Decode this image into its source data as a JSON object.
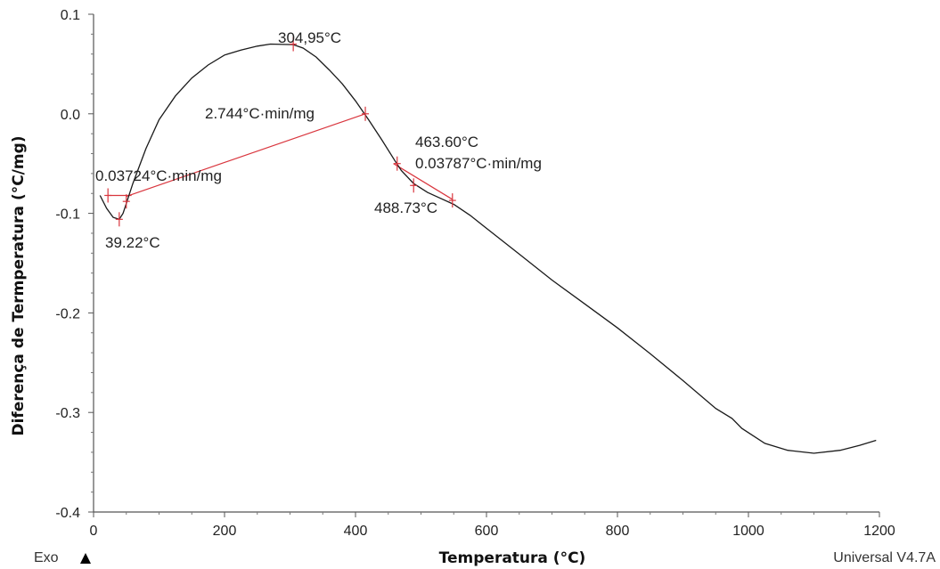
{
  "chart_data": {
    "type": "line",
    "xlabel": "Temperatura (°C)",
    "ylabel": "Diferença de Termperatura (°C/mg)",
    "xlim": [
      0,
      1200
    ],
    "ylim": [
      -0.4,
      0.1
    ],
    "x_ticks": [
      "0",
      "200",
      "400",
      "600",
      "800",
      "1000",
      "1200"
    ],
    "y_ticks": [
      "0.1",
      "0.0",
      "-0.1",
      "-0.2",
      "-0.3",
      "-0.4"
    ],
    "grid": false,
    "series": [
      {
        "color": "#1a1a1a",
        "points": [
          [
            10,
            -0.082
          ],
          [
            20,
            -0.095
          ],
          [
            30,
            -0.104
          ],
          [
            39.22,
            -0.106
          ],
          [
            45,
            -0.1
          ],
          [
            50,
            -0.09
          ],
          [
            60,
            -0.07
          ],
          [
            80,
            -0.035
          ],
          [
            100,
            -0.006
          ],
          [
            125,
            0.018
          ],
          [
            150,
            0.036
          ],
          [
            175,
            0.049
          ],
          [
            200,
            0.059
          ],
          [
            225,
            0.064
          ],
          [
            250,
            0.068
          ],
          [
            270,
            0.07
          ],
          [
            304.95,
            0.0695
          ],
          [
            320,
            0.066
          ],
          [
            340,
            0.057
          ],
          [
            360,
            0.044
          ],
          [
            380,
            0.03
          ],
          [
            400,
            0.013
          ],
          [
            420,
            -0.006
          ],
          [
            440,
            -0.026
          ],
          [
            460,
            -0.047
          ],
          [
            470,
            -0.057
          ],
          [
            488.73,
            -0.07
          ],
          [
            510,
            -0.079
          ],
          [
            530,
            -0.085
          ],
          [
            550,
            -0.091
          ],
          [
            575,
            -0.102
          ],
          [
            600,
            -0.115
          ],
          [
            650,
            -0.141
          ],
          [
            700,
            -0.167
          ],
          [
            750,
            -0.191
          ],
          [
            800,
            -0.215
          ],
          [
            850,
            -0.241
          ],
          [
            900,
            -0.268
          ],
          [
            950,
            -0.296
          ],
          [
            975,
            -0.306
          ],
          [
            990,
            -0.316
          ],
          [
            1025,
            -0.331
          ],
          [
            1060,
            -0.338
          ],
          [
            1100,
            -0.341
          ],
          [
            1140,
            -0.338
          ],
          [
            1170,
            -0.333
          ],
          [
            1195,
            -0.328
          ]
        ]
      }
    ],
    "annotations": [
      {
        "text": "304,95°C",
        "x": 304.95,
        "y": 0.07
      },
      {
        "text": "2.744°C·min/mg"
      },
      {
        "text": "0.03724°C·min/mg"
      },
      {
        "text": "39.22°C",
        "x": 39.22,
        "y": -0.106
      },
      {
        "text": "463.60°C",
        "x": 463.6,
        "y": -0.05
      },
      {
        "text": "0.03787°C·min/mg"
      },
      {
        "text": "488.73°C",
        "x": 488.73,
        "y": -0.07
      }
    ],
    "integration_lines": [
      {
        "color": "#d9363e",
        "points": [
          [
            22,
            -0.082
          ],
          [
            58,
            -0.082
          ]
        ]
      },
      {
        "color": "#d9363e",
        "points": [
          [
            50,
            -0.083
          ],
          [
            415,
            0.0
          ]
        ]
      },
      {
        "color": "#d9363e",
        "points": [
          [
            458,
            -0.05
          ],
          [
            548,
            -0.086
          ]
        ]
      }
    ],
    "markers": [
      {
        "x": 304.95,
        "y": 0.07
      },
      {
        "x": 39.22,
        "y": -0.106
      },
      {
        "x": 22,
        "y": -0.082
      },
      {
        "x": 50,
        "y": -0.088
      },
      {
        "x": 415,
        "y": 0.0
      },
      {
        "x": 463.6,
        "y": -0.05
      },
      {
        "x": 488.73,
        "y": -0.072
      },
      {
        "x": 548,
        "y": -0.087
      }
    ]
  },
  "footer": {
    "exo_label": "Exo",
    "version": "Universal V4.7A"
  },
  "colors": {
    "curve": "#1a1a1a",
    "annotation_line": "#d9363e",
    "axis": "#555555"
  }
}
